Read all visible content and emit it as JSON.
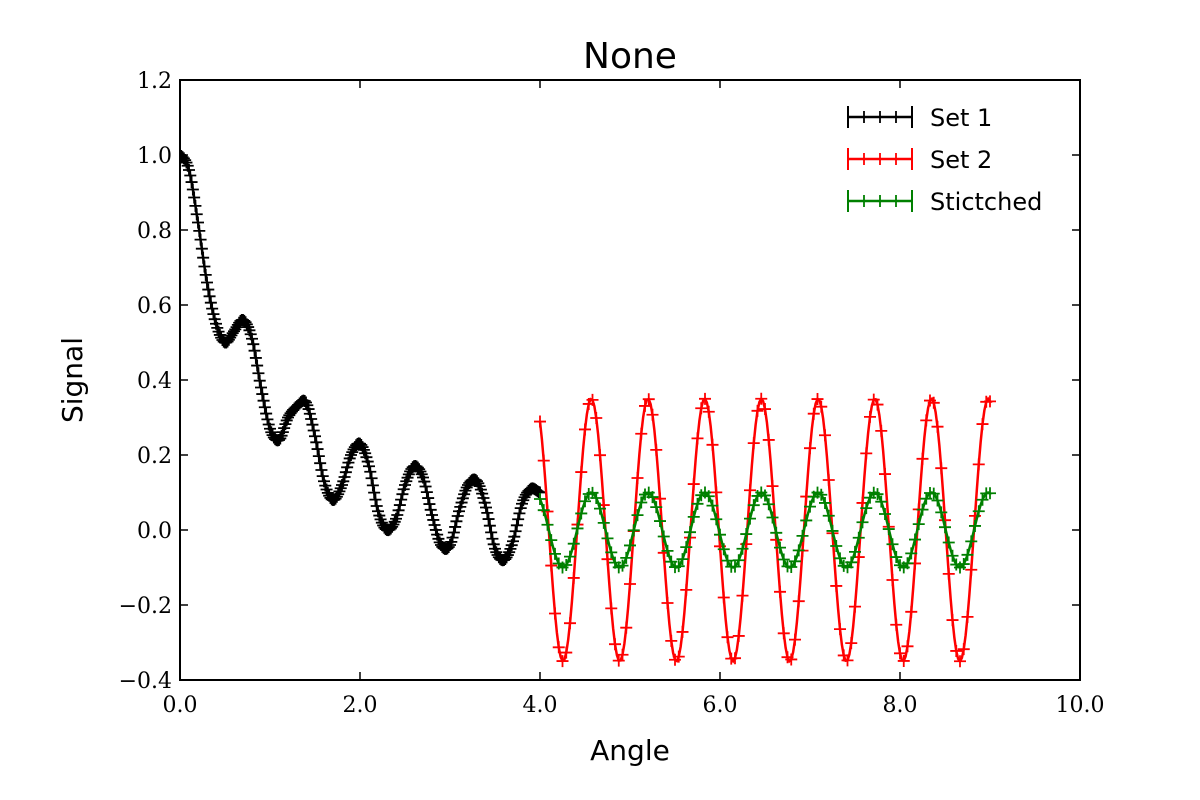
{
  "chart_data": {
    "type": "line",
    "title": "None",
    "xlabel": "Angle",
    "ylabel": "Signal",
    "xlim": [
      0,
      10
    ],
    "ylim": [
      -0.4,
      1.2
    ],
    "xticks": [
      0,
      2,
      4,
      6,
      8,
      10
    ],
    "xtick_labels": [
      "0.0",
      "2.0",
      "4.0",
      "6.0",
      "8.0",
      "10.0"
    ],
    "yticks": [
      -0.4,
      -0.2,
      0.0,
      0.2,
      0.4,
      0.6,
      0.8,
      1.0,
      1.2
    ],
    "ytick_labels": [
      "−0.4",
      "−0.2",
      "0.0",
      "0.2",
      "0.4",
      "0.6",
      "0.8",
      "1.0",
      "1.2"
    ],
    "grid": false,
    "legend_position": "top-right",
    "error_bars": true,
    "series": [
      {
        "name": "Set 1",
        "color": "#000000",
        "x": [
          0.0,
          0.1,
          0.2,
          0.3,
          0.4,
          0.5,
          0.6,
          0.7,
          0.8,
          0.9,
          1.0,
          1.1,
          1.2,
          1.3,
          1.4,
          1.5,
          1.6,
          1.7,
          1.8,
          1.9,
          2.0,
          2.1,
          2.2,
          2.3,
          2.4,
          2.5,
          2.6,
          2.7,
          2.8,
          2.9,
          3.0,
          3.1,
          3.2,
          3.3,
          3.4,
          3.5,
          3.6,
          3.7,
          3.8,
          3.9,
          4.0
        ],
        "y": [
          1.0,
          0.96,
          0.82,
          0.66,
          0.55,
          0.5,
          0.53,
          0.56,
          0.51,
          0.38,
          0.27,
          0.24,
          0.3,
          0.33,
          0.34,
          0.25,
          0.13,
          0.08,
          0.12,
          0.2,
          0.23,
          0.17,
          0.05,
          0.0,
          0.03,
          0.12,
          0.17,
          0.14,
          0.04,
          -0.04,
          -0.04,
          0.05,
          0.12,
          0.13,
          0.06,
          -0.05,
          -0.08,
          -0.03,
          0.07,
          0.11,
          0.1
        ]
      },
      {
        "name": "Set 2",
        "color": "#ff0000",
        "x_start": 4.0,
        "x_end": 9.0,
        "amplitude": 0.35,
        "period": 0.63,
        "peak_at": 4.57
      },
      {
        "name": "Stictched",
        "color": "#008000",
        "x_start": 4.0,
        "x_end": 9.0,
        "amplitude": 0.1,
        "period": 0.63,
        "peak_at": 4.57
      }
    ]
  }
}
